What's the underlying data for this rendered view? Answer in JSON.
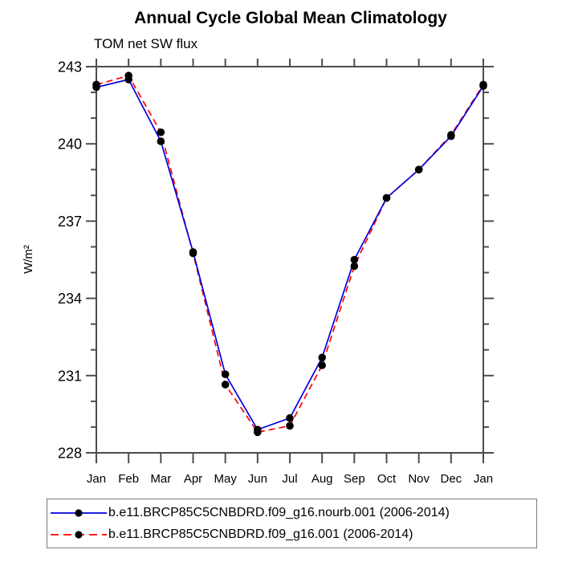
{
  "chart_data": {
    "type": "line",
    "title": "Annual Cycle Global Mean Climatology",
    "subtitle": "TOM net SW flux",
    "ylabel": "W/m²",
    "xlabel": "",
    "categories": [
      "Jan",
      "Feb",
      "Mar",
      "Apr",
      "May",
      "Jun",
      "Jul",
      "Aug",
      "Sep",
      "Oct",
      "Nov",
      "Dec",
      "Jan"
    ],
    "series": [
      {
        "name": "b.e11.BRCP85C5CNBDRD.f09_g16.nourb.001 (2006-2014)",
        "color": "#0000e0",
        "line_style": "solid",
        "marker": "filled-circle",
        "marker_color": "#000000",
        "values": [
          242.2,
          242.5,
          240.1,
          235.8,
          231.05,
          228.9,
          229.35,
          231.7,
          235.5,
          237.9,
          239.0,
          240.3,
          242.25
        ]
      },
      {
        "name": "b.e11.BRCP85C5CNBDRD.f09_g16.001 (2006-2014)",
        "color": "#ff0000",
        "line_style": "dashed",
        "marker": "filled-circle",
        "marker_color": "#000000",
        "values": [
          242.3,
          242.65,
          240.45,
          235.75,
          230.65,
          228.8,
          229.05,
          231.4,
          235.25,
          237.9,
          239.0,
          240.35,
          242.3
        ]
      }
    ],
    "ylim": [
      228,
      243
    ],
    "y_major_ticks": [
      228,
      231,
      234,
      237,
      240,
      243
    ],
    "y_minor_step": 1,
    "grid": false,
    "legend_position": "bottom",
    "axis_color": "#4d4d4d",
    "text_color": "#000000"
  }
}
